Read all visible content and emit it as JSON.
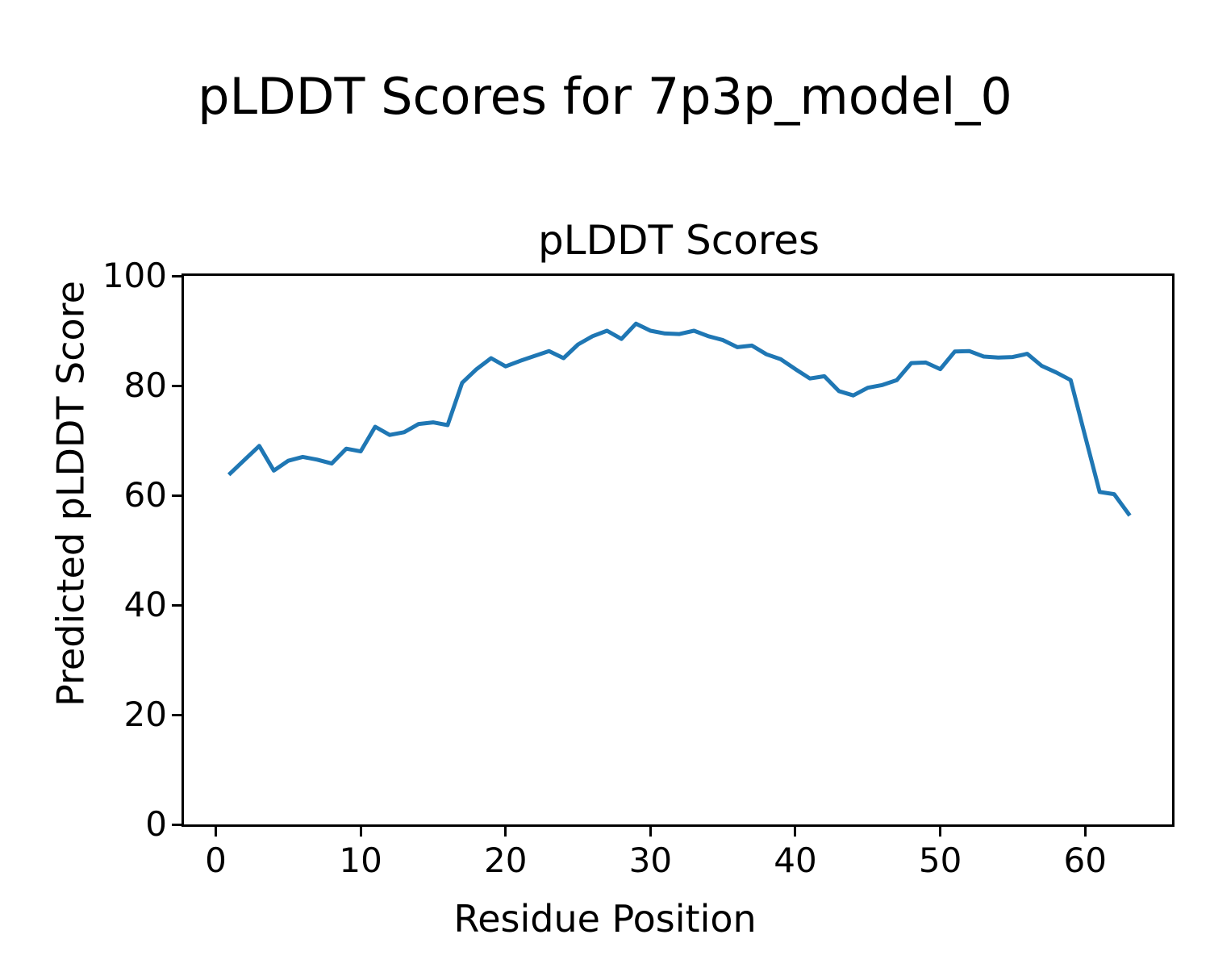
{
  "figure": {
    "title": "pLDDT Scores for 7p3p_model_0",
    "background": "#ffffff",
    "text_color": "#000000"
  },
  "chart_data": {
    "type": "line",
    "title": "pLDDT Scores",
    "xlabel": "Residue Position",
    "ylabel": "Predicted pLDDT Score",
    "xlim": [
      -2.2,
      66
    ],
    "ylim": [
      0,
      100
    ],
    "xticks": [
      0,
      10,
      20,
      30,
      40,
      50,
      60
    ],
    "yticks": [
      0,
      20,
      40,
      60,
      80,
      100
    ],
    "grid": false,
    "legend_position": "none",
    "line_color": "#1f77b4",
    "line_width": 5,
    "series": [
      {
        "name": "pLDDT",
        "x": [
          1,
          2,
          3,
          4,
          5,
          6,
          7,
          8,
          9,
          10,
          11,
          12,
          13,
          14,
          15,
          16,
          17,
          18,
          19,
          20,
          21,
          22,
          23,
          24,
          25,
          26,
          27,
          28,
          29,
          30,
          31,
          32,
          33,
          34,
          35,
          36,
          37,
          38,
          39,
          40,
          41,
          42,
          43,
          44,
          45,
          46,
          47,
          48,
          49,
          50,
          51,
          52,
          53,
          54,
          55,
          56,
          57,
          58,
          59,
          60,
          61,
          62,
          63
        ],
        "y": [
          64,
          66.5,
          69,
          64.5,
          66.3,
          67,
          66.5,
          65.8,
          68.5,
          68,
          72.5,
          71,
          71.5,
          73,
          73.3,
          72.8,
          80.5,
          83,
          85,
          83.5,
          84.5,
          85.4,
          86.3,
          85,
          87.5,
          89,
          90,
          88.5,
          91.3,
          90,
          89.5,
          89.4,
          90,
          89,
          88.3,
          87,
          87.3,
          85.7,
          84.8,
          83,
          81.3,
          81.7,
          79,
          78.2,
          79.6,
          80.1,
          81,
          84.1,
          84.2,
          83,
          86.2,
          86.3,
          85.3,
          85.1,
          85.2,
          85.8,
          83.6,
          82.4,
          81,
          70.8,
          60.6,
          60.2,
          56.6
        ]
      }
    ]
  }
}
